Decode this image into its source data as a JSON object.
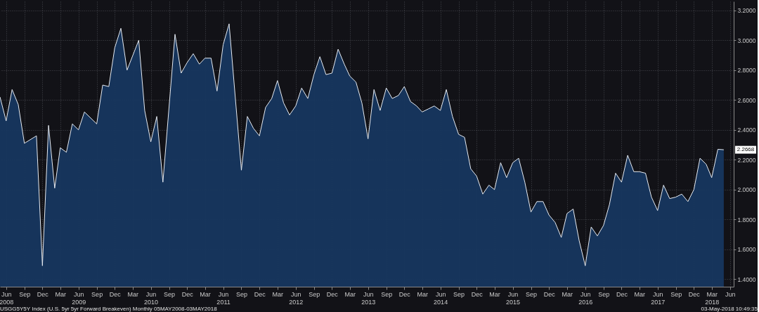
{
  "chart_data": {
    "type": "area",
    "x": [
      "2008-05",
      "2008-06",
      "2008-07",
      "2008-08",
      "2008-09",
      "2008-11",
      "2008-12",
      "2009-01",
      "2009-02",
      "2009-03",
      "2009-04",
      "2009-05",
      "2009-06",
      "2009-07",
      "2009-09",
      "2009-10",
      "2009-11",
      "2009-12",
      "2010-01",
      "2010-02",
      "2010-04",
      "2010-05",
      "2010-06",
      "2010-07",
      "2010-08",
      "2010-10",
      "2010-11",
      "2010-12",
      "2011-01",
      "2011-02",
      "2011-03",
      "2011-04",
      "2011-05",
      "2011-06",
      "2011-07",
      "2011-09",
      "2011-10",
      "2011-11",
      "2011-12",
      "2012-01",
      "2012-02",
      "2012-03",
      "2012-04",
      "2012-05",
      "2012-06",
      "2012-07",
      "2012-08",
      "2012-09",
      "2012-10",
      "2012-11",
      "2012-12",
      "2013-01",
      "2013-02",
      "2013-03",
      "2013-04",
      "2013-05",
      "2013-06",
      "2013-07",
      "2013-08",
      "2013-09",
      "2013-10",
      "2013-11",
      "2013-12",
      "2014-01",
      "2014-02",
      "2014-03",
      "2014-04",
      "2014-05",
      "2014-06",
      "2014-07",
      "2014-08",
      "2014-09",
      "2014-10",
      "2014-11",
      "2014-12",
      "2015-01",
      "2015-02",
      "2015-03",
      "2015-04",
      "2015-05",
      "2015-06",
      "2015-07",
      "2015-08",
      "2015-09",
      "2015-10",
      "2015-11",
      "2015-12",
      "2016-01",
      "2016-02",
      "2016-03",
      "2016-04",
      "2016-05",
      "2016-06",
      "2016-07",
      "2016-08",
      "2016-09",
      "2016-10",
      "2016-11",
      "2016-12",
      "2017-01",
      "2017-02",
      "2017-03",
      "2017-04",
      "2017-05",
      "2017-06",
      "2017-07",
      "2017-08",
      "2017-09",
      "2017-10",
      "2017-11",
      "2017-12",
      "2018-01",
      "2018-02",
      "2018-03",
      "2018-04",
      "2018-05"
    ],
    "series": [
      {
        "color": "#17375f",
        "values": [
          2.62,
          2.46,
          2.67,
          2.57,
          2.31,
          2.36,
          1.49,
          2.43,
          2.01,
          2.28,
          2.25,
          2.44,
          2.4,
          2.52,
          2.44,
          2.7,
          2.69,
          2.95,
          3.08,
          2.8,
          3.0,
          2.53,
          2.32,
          2.49,
          2.05,
          3.04,
          2.78,
          2.85,
          2.91,
          2.84,
          2.88,
          2.88,
          2.66,
          2.97,
          3.11,
          2.13,
          2.49,
          2.41,
          2.36,
          2.55,
          2.61,
          2.73,
          2.58,
          2.5,
          2.56,
          2.68,
          2.61,
          2.77,
          2.89,
          2.77,
          2.78,
          2.94,
          2.84,
          2.76,
          2.72,
          2.58,
          2.34,
          2.67,
          2.53,
          2.68,
          2.61,
          2.63,
          2.69,
          2.59,
          2.56,
          2.52,
          2.54,
          2.56,
          2.53,
          2.67,
          2.49,
          2.37,
          2.35,
          2.14,
          2.09,
          1.97,
          2.03,
          2.0,
          2.18,
          2.08,
          2.18,
          2.21,
          2.05,
          1.85,
          1.92,
          1.92,
          1.83,
          1.78,
          1.68,
          1.84,
          1.87,
          1.66,
          1.49,
          1.75,
          1.69,
          1.76,
          1.9,
          2.11,
          2.05,
          2.23,
          2.12,
          2.12,
          2.11,
          1.95,
          1.86,
          2.03,
          1.94,
          1.95,
          1.97,
          1.92,
          2.0,
          2.21,
          2.17,
          2.08,
          2.27,
          2.2668
        ]
      }
    ],
    "xlim": [
      "2008-05",
      "2018-06-20"
    ],
    "xticks": [
      {
        "value": "2008-06",
        "label": "Jun\n2008"
      },
      {
        "value": "2008-09",
        "label": "Sep"
      },
      {
        "value": "2008-12",
        "label": "Dec"
      },
      {
        "value": "2009-03",
        "label": "Mar"
      },
      {
        "value": "2009-06",
        "label": "Jun\n2009"
      },
      {
        "value": "2009-09",
        "label": "Sep"
      },
      {
        "value": "2009-12",
        "label": "Dec"
      },
      {
        "value": "2010-03",
        "label": "Mar"
      },
      {
        "value": "2010-06",
        "label": "Jun\n2010"
      },
      {
        "value": "2010-09",
        "label": "Sep"
      },
      {
        "value": "2010-12",
        "label": "Dec"
      },
      {
        "value": "2011-03",
        "label": "Mar"
      },
      {
        "value": "2011-06",
        "label": "Jun\n2011"
      },
      {
        "value": "2011-09",
        "label": "Sep"
      },
      {
        "value": "2011-12",
        "label": "Dec"
      },
      {
        "value": "2012-03",
        "label": "Mar"
      },
      {
        "value": "2012-06",
        "label": "Jun\n2012"
      },
      {
        "value": "2012-09",
        "label": "Sep"
      },
      {
        "value": "2012-12",
        "label": "Dec"
      },
      {
        "value": "2013-03",
        "label": "Mar"
      },
      {
        "value": "2013-06",
        "label": "Jun\n2013"
      },
      {
        "value": "2013-09",
        "label": "Sep"
      },
      {
        "value": "2013-12",
        "label": "Dec"
      },
      {
        "value": "2014-03",
        "label": "Mar"
      },
      {
        "value": "2014-06",
        "label": "Jun\n2014"
      },
      {
        "value": "2014-09",
        "label": "Sep"
      },
      {
        "value": "2014-12",
        "label": "Dec"
      },
      {
        "value": "2015-03",
        "label": "Mar"
      },
      {
        "value": "2015-06",
        "label": "Jun\n2015"
      },
      {
        "value": "2015-09",
        "label": "Sep"
      },
      {
        "value": "2015-12",
        "label": "Dec"
      },
      {
        "value": "2016-03",
        "label": "Mar"
      },
      {
        "value": "2016-06",
        "label": "Jun\n2016"
      },
      {
        "value": "2016-09",
        "label": "Sep"
      },
      {
        "value": "2016-12",
        "label": "Dec"
      },
      {
        "value": "2017-03",
        "label": "Mar"
      },
      {
        "value": "2017-06",
        "label": "Jun\n2017"
      },
      {
        "value": "2017-09",
        "label": "Sep"
      },
      {
        "value": "2017-12",
        "label": "Dec"
      },
      {
        "value": "2018-03",
        "label": "Mar\n2018"
      },
      {
        "value": "2018-06",
        "label": "Jun"
      }
    ],
    "ylim": [
      1.35,
      3.26
    ],
    "yticks": [
      {
        "value": 1.4,
        "label": "1.4000"
      },
      {
        "value": 1.6,
        "label": "1.6000"
      },
      {
        "value": 1.8,
        "label": "1.8000"
      },
      {
        "value": 2.0,
        "label": "2.0000"
      },
      {
        "value": 2.2,
        "label": "2.2000"
      },
      {
        "value": 2.4,
        "label": "2.4000"
      },
      {
        "value": 2.6,
        "label": "2.6000"
      },
      {
        "value": 2.8,
        "label": "2.8000"
      },
      {
        "value": 3.0,
        "label": "3.0000"
      },
      {
        "value": 3.2,
        "label": "3.2000"
      }
    ],
    "grid": true,
    "annotations": [
      {
        "text": "2.2668",
        "x": "2018-05",
        "y": 2.2668
      },
      "USGG5Y5Y Index (U.S. 5yr 5yr Forward Breakeven)  Monthly 05MAY2008-03MAY2018",
      "03-May-2018 10:49:35"
    ]
  }
}
